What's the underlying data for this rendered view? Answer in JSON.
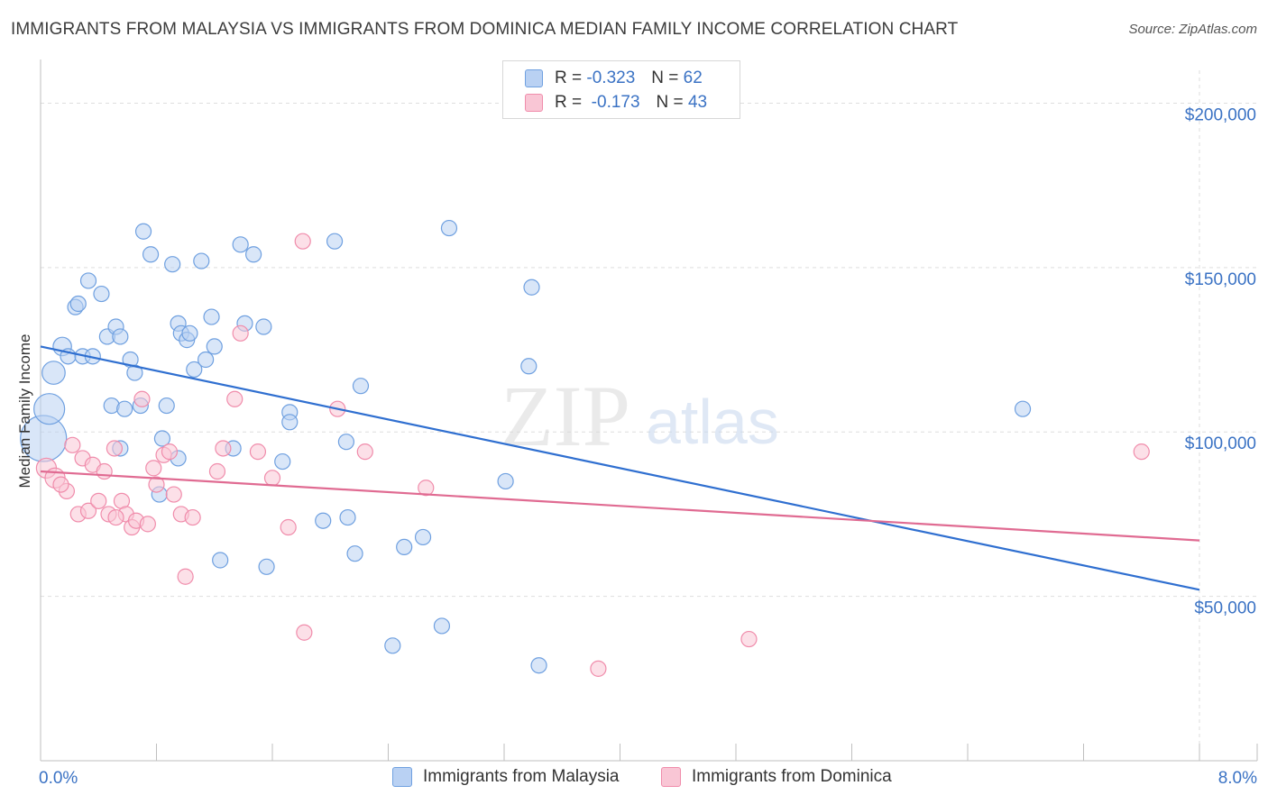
{
  "title": "IMMIGRANTS FROM MALAYSIA VS IMMIGRANTS FROM DOMINICA MEDIAN FAMILY INCOME CORRELATION CHART",
  "source": "Source: ZipAtlas.com",
  "watermark": {
    "zip": "ZIP",
    "atlas": "atlas"
  },
  "legend": {
    "r_label": "R =",
    "n_label": "N =",
    "rows": [
      {
        "r": "-0.323",
        "n": "62"
      },
      {
        "r": "-0.173",
        "n": "43"
      }
    ]
  },
  "chart_data": {
    "type": "scatter",
    "xlabel": "",
    "ylabel": "Median Family Income",
    "xlim": [
      0,
      8
    ],
    "ylim": [
      0,
      210000
    ],
    "x_tick_labels": [
      "0.0%",
      "8.0%"
    ],
    "y_ticks": [
      50000,
      100000,
      150000,
      200000
    ],
    "y_tick_labels": [
      "$50,000",
      "$100,000",
      "$150,000",
      "$200,000"
    ],
    "grid": true,
    "colors": {
      "malaysia": "#6fa0e0",
      "dominica": "#f08cab",
      "malaysia_line": "#2f6fd0",
      "dominica_line": "#e06b92",
      "tick_text": "#3a72c4"
    },
    "series": [
      {
        "name": "Immigrants from Malaysia",
        "trend": {
          "x": [
            0,
            8
          ],
          "y": [
            126000,
            52000
          ]
        },
        "points": [
          {
            "x": 0.02,
            "y": 98000,
            "s": 3
          },
          {
            "x": 0.06,
            "y": 107000,
            "s": 2
          },
          {
            "x": 0.09,
            "y": 118000,
            "s": 1.5
          },
          {
            "x": 0.15,
            "y": 126000,
            "s": 1.2
          },
          {
            "x": 0.19,
            "y": 123000
          },
          {
            "x": 0.24,
            "y": 138000
          },
          {
            "x": 0.26,
            "y": 139000
          },
          {
            "x": 0.29,
            "y": 123000
          },
          {
            "x": 0.33,
            "y": 146000
          },
          {
            "x": 0.36,
            "y": 123000
          },
          {
            "x": 0.42,
            "y": 142000
          },
          {
            "x": 0.46,
            "y": 129000
          },
          {
            "x": 0.49,
            "y": 108000
          },
          {
            "x": 0.52,
            "y": 132000
          },
          {
            "x": 0.55,
            "y": 129000
          },
          {
            "x": 0.58,
            "y": 107000
          },
          {
            "x": 0.62,
            "y": 122000
          },
          {
            "x": 0.65,
            "y": 118000
          },
          {
            "x": 0.69,
            "y": 108000
          },
          {
            "x": 0.71,
            "y": 161000
          },
          {
            "x": 0.76,
            "y": 154000
          },
          {
            "x": 0.82,
            "y": 81000
          },
          {
            "x": 0.84,
            "y": 98000
          },
          {
            "x": 0.87,
            "y": 108000
          },
          {
            "x": 0.91,
            "y": 151000
          },
          {
            "x": 0.95,
            "y": 133000
          },
          {
            "x": 0.97,
            "y": 130000
          },
          {
            "x": 1.01,
            "y": 128000
          },
          {
            "x": 1.03,
            "y": 130000
          },
          {
            "x": 1.06,
            "y": 119000
          },
          {
            "x": 1.11,
            "y": 152000
          },
          {
            "x": 1.14,
            "y": 122000
          },
          {
            "x": 1.18,
            "y": 135000
          },
          {
            "x": 1.24,
            "y": 61000
          },
          {
            "x": 1.33,
            "y": 95000
          },
          {
            "x": 1.38,
            "y": 157000
          },
          {
            "x": 1.41,
            "y": 133000
          },
          {
            "x": 1.47,
            "y": 154000
          },
          {
            "x": 1.54,
            "y": 132000
          },
          {
            "x": 1.56,
            "y": 59000
          },
          {
            "x": 1.67,
            "y": 91000
          },
          {
            "x": 1.72,
            "y": 106000
          },
          {
            "x": 1.72,
            "y": 103000
          },
          {
            "x": 1.95,
            "y": 73000
          },
          {
            "x": 2.03,
            "y": 158000
          },
          {
            "x": 2.11,
            "y": 97000
          },
          {
            "x": 2.12,
            "y": 74000
          },
          {
            "x": 2.17,
            "y": 63000
          },
          {
            "x": 2.21,
            "y": 114000
          },
          {
            "x": 2.43,
            "y": 35000
          },
          {
            "x": 2.51,
            "y": 65000
          },
          {
            "x": 2.64,
            "y": 68000
          },
          {
            "x": 2.77,
            "y": 41000
          },
          {
            "x": 2.82,
            "y": 162000
          },
          {
            "x": 3.21,
            "y": 85000
          },
          {
            "x": 3.37,
            "y": 120000
          },
          {
            "x": 3.39,
            "y": 144000
          },
          {
            "x": 3.44,
            "y": 29000
          },
          {
            "x": 6.78,
            "y": 107000
          },
          {
            "x": 0.55,
            "y": 95000
          },
          {
            "x": 0.95,
            "y": 92000
          },
          {
            "x": 1.2,
            "y": 126000
          }
        ]
      },
      {
        "name": "Immigrants from Dominica",
        "trend": {
          "x": [
            0,
            8
          ],
          "y": [
            88000,
            67000
          ]
        },
        "points": [
          {
            "x": 0.04,
            "y": 89000,
            "s": 1.3
          },
          {
            "x": 0.1,
            "y": 86000,
            "s": 1.3
          },
          {
            "x": 0.18,
            "y": 82000
          },
          {
            "x": 0.22,
            "y": 96000
          },
          {
            "x": 0.26,
            "y": 75000
          },
          {
            "x": 0.29,
            "y": 92000
          },
          {
            "x": 0.33,
            "y": 76000
          },
          {
            "x": 0.36,
            "y": 90000
          },
          {
            "x": 0.4,
            "y": 79000
          },
          {
            "x": 0.44,
            "y": 88000
          },
          {
            "x": 0.47,
            "y": 75000
          },
          {
            "x": 0.51,
            "y": 95000
          },
          {
            "x": 0.56,
            "y": 79000
          },
          {
            "x": 0.59,
            "y": 75000
          },
          {
            "x": 0.63,
            "y": 71000
          },
          {
            "x": 0.66,
            "y": 73000
          },
          {
            "x": 0.7,
            "y": 110000
          },
          {
            "x": 0.74,
            "y": 72000
          },
          {
            "x": 0.78,
            "y": 89000
          },
          {
            "x": 0.8,
            "y": 84000
          },
          {
            "x": 0.85,
            "y": 93000
          },
          {
            "x": 0.89,
            "y": 94000
          },
          {
            "x": 0.92,
            "y": 81000
          },
          {
            "x": 0.97,
            "y": 75000
          },
          {
            "x": 1.0,
            "y": 56000
          },
          {
            "x": 1.05,
            "y": 74000
          },
          {
            "x": 1.22,
            "y": 88000
          },
          {
            "x": 1.26,
            "y": 95000
          },
          {
            "x": 1.34,
            "y": 110000
          },
          {
            "x": 1.38,
            "y": 130000
          },
          {
            "x": 1.5,
            "y": 94000
          },
          {
            "x": 1.6,
            "y": 86000
          },
          {
            "x": 1.71,
            "y": 71000
          },
          {
            "x": 1.81,
            "y": 158000
          },
          {
            "x": 1.82,
            "y": 39000
          },
          {
            "x": 2.05,
            "y": 107000
          },
          {
            "x": 2.24,
            "y": 94000
          },
          {
            "x": 2.66,
            "y": 83000
          },
          {
            "x": 3.85,
            "y": 28000
          },
          {
            "x": 4.89,
            "y": 37000
          },
          {
            "x": 7.6,
            "y": 94000
          },
          {
            "x": 0.14,
            "y": 84000
          },
          {
            "x": 0.52,
            "y": 74000
          }
        ]
      }
    ]
  }
}
